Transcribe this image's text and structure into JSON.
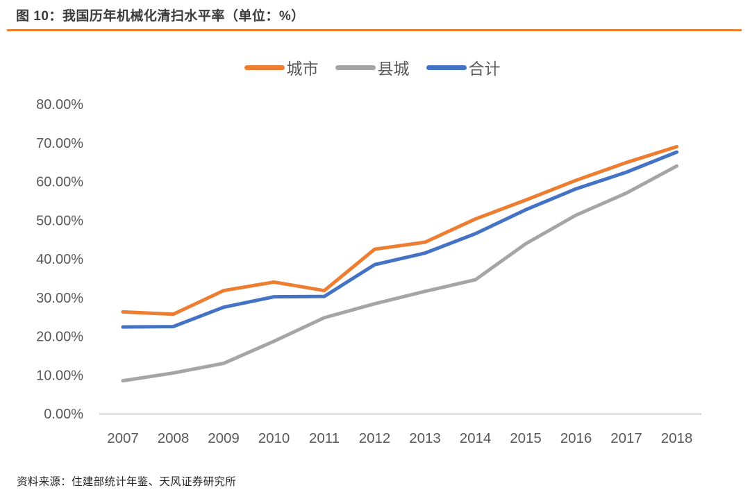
{
  "header": {
    "title": "图 10：我国历年机械化清扫水平率（单位：%）"
  },
  "footer": {
    "source": "资料来源：住建部统计年鉴、天风证券研究所"
  },
  "colors": {
    "accent_rule": "#ED7D31",
    "axis_line": "#BFBFBF",
    "tick_text": "#595959",
    "title_text": "#3B3B3B",
    "source_text": "#262626"
  },
  "chart_data": {
    "type": "line",
    "title": "我国历年机械化清扫水平率",
    "unit": "%",
    "categories": [
      "2007",
      "2008",
      "2009",
      "2010",
      "2011",
      "2012",
      "2013",
      "2014",
      "2015",
      "2016",
      "2017",
      "2018"
    ],
    "series": [
      {
        "name": "城市",
        "color": "#ED7D31",
        "values": [
          26.3,
          25.7,
          31.8,
          34.0,
          31.8,
          42.5,
          44.3,
          50.3,
          55.2,
          60.3,
          64.9,
          69.0
        ]
      },
      {
        "name": "县城",
        "color": "#A5A5A5",
        "values": [
          8.5,
          10.5,
          13.0,
          18.7,
          24.8,
          28.4,
          31.6,
          34.6,
          43.9,
          51.3,
          57.0,
          64.0
        ]
      },
      {
        "name": "合计",
        "color": "#4472C4",
        "values": [
          22.4,
          22.5,
          27.5,
          30.2,
          30.3,
          38.5,
          41.5,
          46.5,
          52.7,
          58.1,
          62.4,
          67.6
        ]
      }
    ],
    "ylim": [
      0,
      80
    ],
    "ytick_step": 10,
    "ytick_format": "two_decimal_percent",
    "xlabel": "",
    "ylabel": "",
    "grid": false,
    "legend_position": "top-center",
    "draw_order_note": "合计 (blue) drawn on top"
  }
}
